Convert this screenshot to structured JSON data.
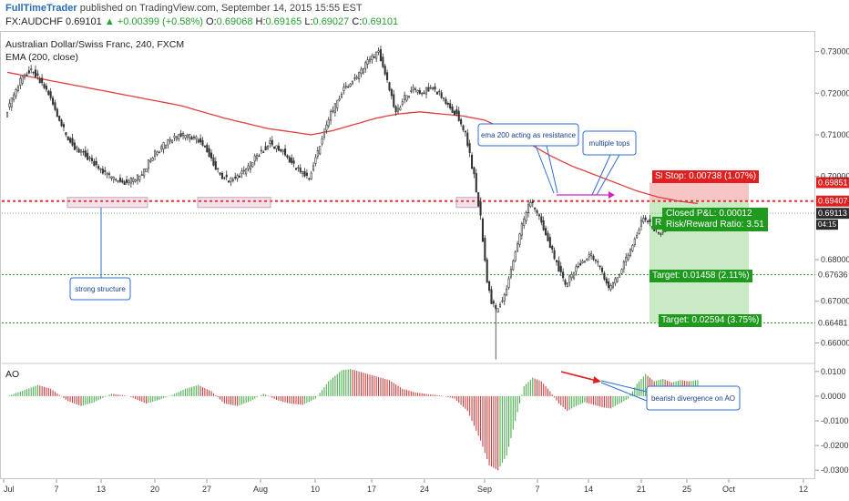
{
  "header": {
    "brand": "FullTimeTrader",
    "published": "published on TradingView.com, September 14, 2015 15:55 EST",
    "symbol": "FX:AUDCHF",
    "last": "0.69101",
    "change": "▲ +0.00399 (+0.58%)",
    "o_label": "O:",
    "o_value": "0.69068",
    "h_label": "H:",
    "h_value": "0.69165",
    "l_label": "L:",
    "l_value": "0.69027",
    "c_label": "C:",
    "c_value": "0.69101"
  },
  "legend": {
    "title": "Australian Dollar/Swiss Franc, 240, FXCM",
    "ema": "EMA (200, close)",
    "ao": "AO"
  },
  "colors": {
    "up": "#26a69a",
    "down": "#333333",
    "ema": "#e04040",
    "resistance": "#e53030",
    "stop_fill": "#f6c5c5",
    "target_fill": "#c8ebc4",
    "tag_red": "#e02020",
    "tag_green": "#1f9a1f",
    "ao_up": "#4caf50",
    "ao_down": "#c94040",
    "annotation": "#2f6fd0"
  },
  "chart_data": {
    "type": "candlestick",
    "symbol": "AUDCHF",
    "timeframe": "240",
    "price_axis": {
      "ylim": [
        0.6555,
        0.7345
      ],
      "ticks": [
        "0.73000",
        "0.72000",
        "0.71000",
        "0.70000",
        "0.68000",
        "0.67000",
        "0.66000"
      ]
    },
    "time_axis": {
      "labels": [
        "Jul",
        "7",
        "13",
        "20",
        "27",
        "Aug",
        "10",
        "17",
        "24",
        "Sep",
        "7",
        "14",
        "21",
        "25",
        "Oct",
        "12"
      ]
    },
    "price_path": [
      [
        0,
        0.715
      ],
      [
        4,
        0.7195
      ],
      [
        8,
        0.724
      ],
      [
        12,
        0.7255
      ],
      [
        16,
        0.723
      ],
      [
        20,
        0.72
      ],
      [
        24,
        0.715
      ],
      [
        28,
        0.71
      ],
      [
        32,
        0.707
      ],
      [
        36,
        0.7055
      ],
      [
        40,
        0.7035
      ],
      [
        45,
        0.701
      ],
      [
        50,
        0.6995
      ],
      [
        56,
        0.6985
      ],
      [
        62,
        0.7
      ],
      [
        68,
        0.705
      ],
      [
        74,
        0.708
      ],
      [
        80,
        0.71
      ],
      [
        86,
        0.7095
      ],
      [
        92,
        0.7075
      ],
      [
        96,
        0.703
      ],
      [
        100,
        0.7
      ],
      [
        104,
        0.699
      ],
      [
        110,
        0.701
      ],
      [
        116,
        0.705
      ],
      [
        122,
        0.708
      ],
      [
        128,
        0.706
      ],
      [
        134,
        0.702
      ],
      [
        140,
        0.6995
      ],
      [
        144,
        0.706
      ],
      [
        150,
        0.715
      ],
      [
        156,
        0.721
      ],
      [
        162,
        0.724
      ],
      [
        168,
        0.728
      ],
      [
        172,
        0.73
      ],
      [
        176,
        0.723
      ],
      [
        180,
        0.715
      ],
      [
        184,
        0.719
      ],
      [
        188,
        0.721
      ],
      [
        192,
        0.72
      ],
      [
        196,
        0.7215
      ],
      [
        200,
        0.72
      ],
      [
        204,
        0.717
      ],
      [
        208,
        0.715
      ],
      [
        212,
        0.71
      ],
      [
        216,
        0.7
      ],
      [
        219,
        0.69
      ],
      [
        222,
        0.675
      ],
      [
        224,
        0.67
      ],
      [
        226,
        0.668
      ],
      [
        230,
        0.671
      ],
      [
        234,
        0.68
      ],
      [
        238,
        0.688
      ],
      [
        242,
        0.694
      ],
      [
        246,
        0.69
      ],
      [
        250,
        0.685
      ],
      [
        254,
        0.679
      ],
      [
        258,
        0.674
      ],
      [
        262,
        0.677
      ],
      [
        266,
        0.68
      ],
      [
        270,
        0.681
      ],
      [
        274,
        0.678
      ],
      [
        278,
        0.673
      ],
      [
        282,
        0.676
      ],
      [
        286,
        0.68
      ],
      [
        290,
        0.685
      ],
      [
        294,
        0.69
      ],
      [
        298,
        0.688
      ],
      [
        302,
        0.686
      ],
      [
        306,
        0.689
      ],
      [
        310,
        0.6905
      ],
      [
        314,
        0.69
      ],
      [
        318,
        0.691
      ]
    ],
    "ema_path": [
      [
        0,
        0.725
      ],
      [
        20,
        0.723
      ],
      [
        40,
        0.721
      ],
      [
        60,
        0.719
      ],
      [
        80,
        0.717
      ],
      [
        100,
        0.714
      ],
      [
        120,
        0.7115
      ],
      [
        140,
        0.71
      ],
      [
        150,
        0.711
      ],
      [
        160,
        0.7125
      ],
      [
        170,
        0.714
      ],
      [
        180,
        0.715
      ],
      [
        190,
        0.7155
      ],
      [
        200,
        0.715
      ],
      [
        210,
        0.7145
      ],
      [
        220,
        0.7135
      ],
      [
        230,
        0.711
      ],
      [
        240,
        0.708
      ],
      [
        250,
        0.705
      ],
      [
        260,
        0.7025
      ],
      [
        270,
        0.7005
      ],
      [
        280,
        0.6985
      ],
      [
        290,
        0.6965
      ],
      [
        300,
        0.695
      ],
      [
        310,
        0.694
      ],
      [
        318,
        0.6935
      ]
    ],
    "levels": [
      {
        "name": "resistance",
        "value": 0.69407,
        "label": "0.69407",
        "style": "dotted-red"
      },
      {
        "name": "stop",
        "value": 0.69851,
        "label": "0.69851",
        "style": "tag-red"
      },
      {
        "name": "last",
        "value": 0.69113,
        "label": "0.69113",
        "style": "tag-green"
      },
      {
        "name": "target-1",
        "value": 0.67636,
        "label": "0.67636",
        "style": "dotted-green"
      },
      {
        "name": "target-2",
        "value": 0.66481,
        "label": "0.66481",
        "style": "dotted-green"
      }
    ],
    "last_price_countdown": "04:15",
    "risk_reward": {
      "stop_label": "Stop: 0.00738 (1.07%)",
      "pnl_label": "Closed P&L: 0.00012",
      "rr_label": "Risk/Reward Ratio: 3.51",
      "target1_label": "Target: 0.01458 (2.11%)",
      "target2_label": "Target: 0.02594 (3.75%)",
      "stop_prefix": "St",
      "rr_prefix": "R"
    },
    "annotations": [
      {
        "text": "strong structure"
      },
      {
        "text": "ema 200 acting as resistance"
      },
      {
        "text": "multiple tops"
      },
      {
        "text": "bearish divergence on AO"
      }
    ],
    "ao_axis": {
      "ylim": [
        -0.0325,
        0.0125
      ],
      "ticks": [
        "0.0100",
        "0.0000",
        "-0.0100",
        "-0.0200",
        "-0.0300"
      ]
    },
    "ao_path": [
      [
        0,
        0.0
      ],
      [
        8,
        0.0025
      ],
      [
        14,
        0.0045
      ],
      [
        20,
        0.003
      ],
      [
        28,
        -0.002
      ],
      [
        34,
        -0.004
      ],
      [
        40,
        -0.0025
      ],
      [
        48,
        0.001
      ],
      [
        56,
        0.0
      ],
      [
        64,
        -0.003
      ],
      [
        70,
        -0.0015
      ],
      [
        76,
        0.0005
      ],
      [
        82,
        0.003
      ],
      [
        88,
        0.0045
      ],
      [
        94,
        0.002
      ],
      [
        100,
        -0.003
      ],
      [
        106,
        -0.004
      ],
      [
        112,
        -0.002
      ],
      [
        118,
        0.001
      ],
      [
        124,
        -0.0015
      ],
      [
        130,
        -0.003
      ],
      [
        136,
        -0.0035
      ],
      [
        142,
        -0.001
      ],
      [
        148,
        0.006
      ],
      [
        154,
        0.0105
      ],
      [
        158,
        0.011
      ],
      [
        164,
        0.0095
      ],
      [
        170,
        0.008
      ],
      [
        176,
        0.0065
      ],
      [
        182,
        0.003
      ],
      [
        188,
        0.0015
      ],
      [
        194,
        0.0008
      ],
      [
        200,
        0.0002
      ],
      [
        206,
        -0.001
      ],
      [
        212,
        -0.006
      ],
      [
        218,
        -0.018
      ],
      [
        222,
        -0.028
      ],
      [
        226,
        -0.03
      ],
      [
        230,
        -0.024
      ],
      [
        234,
        -0.01
      ],
      [
        238,
        0.004
      ],
      [
        242,
        0.0075
      ],
      [
        246,
        0.006
      ],
      [
        250,
        0.002
      ],
      [
        254,
        -0.003
      ],
      [
        258,
        -0.006
      ],
      [
        262,
        -0.004
      ],
      [
        266,
        -0.0025
      ],
      [
        270,
        -0.0035
      ],
      [
        274,
        -0.0045
      ],
      [
        278,
        -0.005
      ],
      [
        282,
        -0.003
      ],
      [
        286,
        -0.001
      ],
      [
        290,
        0.005
      ],
      [
        294,
        0.009
      ],
      [
        298,
        0.006
      ],
      [
        302,
        0.007
      ],
      [
        306,
        0.0055
      ],
      [
        310,
        0.0065
      ],
      [
        314,
        0.006
      ],
      [
        318,
        0.0065
      ]
    ]
  }
}
